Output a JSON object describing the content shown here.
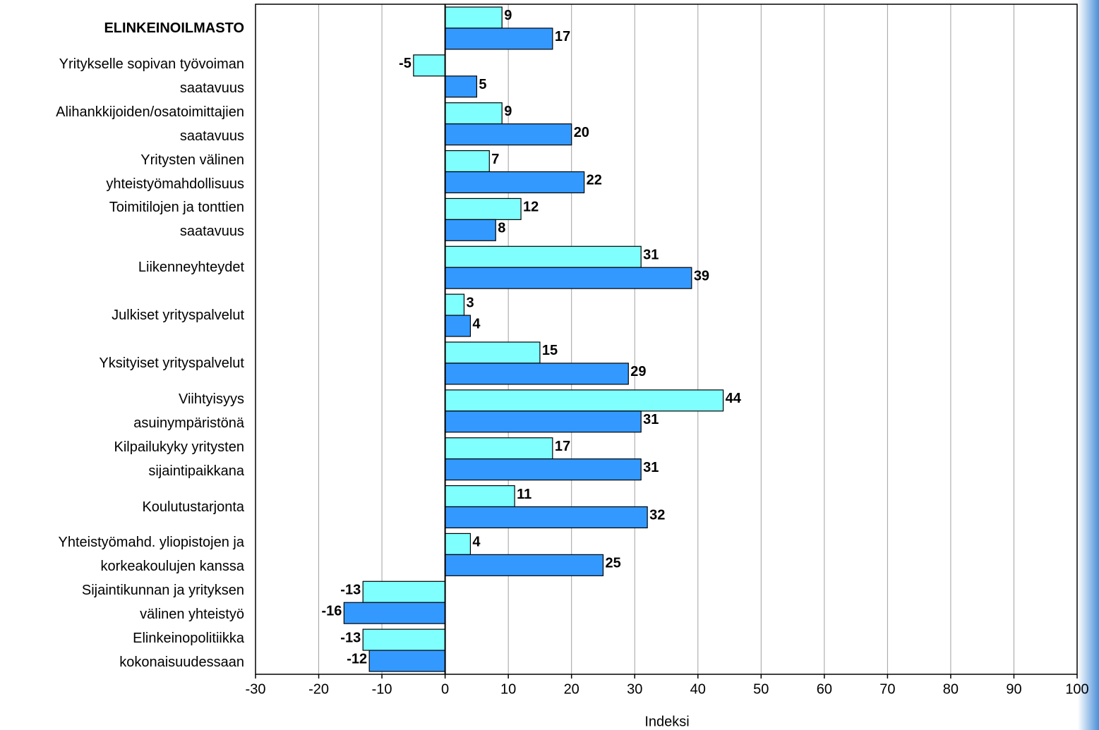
{
  "chart_data": {
    "type": "hbar",
    "categories": [
      "ELINKEINOILMASTO",
      "Yritykselle sopivan työvoiman\nsaatavuus",
      "Alihankkijoiden/osatoimittajien\nsaatavuus",
      "Yritysten välinen\nyhteistyömahdollisuus",
      "Toimitilojen ja tonttien\nsaatavuus",
      "Liikenneyhteydet",
      "Julkiset yrityspalvelut",
      "Yksityiset yrityspalvelut",
      "Viihtyisyys\nasuinympäristönä",
      "Kilpailukyky yritysten\nsijaintipaikkana",
      "Koulutustarjonta",
      "Yhteistyömahd. yliopistojen ja\nkorkeakoulujen kanssa",
      "Sijaintikunnan ja yrityksen\nvälinen yhteistyö",
      "Elinkeinopolitiikka\nkokonaisuudessaan"
    ],
    "series": [
      {
        "color": "#80ffff",
        "values": [
          9,
          -5,
          9,
          7,
          12,
          31,
          3,
          15,
          44,
          17,
          11,
          4,
          -13,
          -13
        ]
      },
      {
        "color": "#3399ff",
        "values": [
          17,
          5,
          20,
          22,
          8,
          39,
          4,
          29,
          31,
          31,
          32,
          25,
          -16,
          -12
        ]
      }
    ],
    "xlabel": "Indeksi",
    "xlim": [
      -30,
      100
    ],
    "xticks": [
      -30,
      -20,
      -10,
      0,
      10,
      20,
      30,
      40,
      50,
      60,
      70,
      80,
      90,
      100
    ],
    "grid": true
  }
}
